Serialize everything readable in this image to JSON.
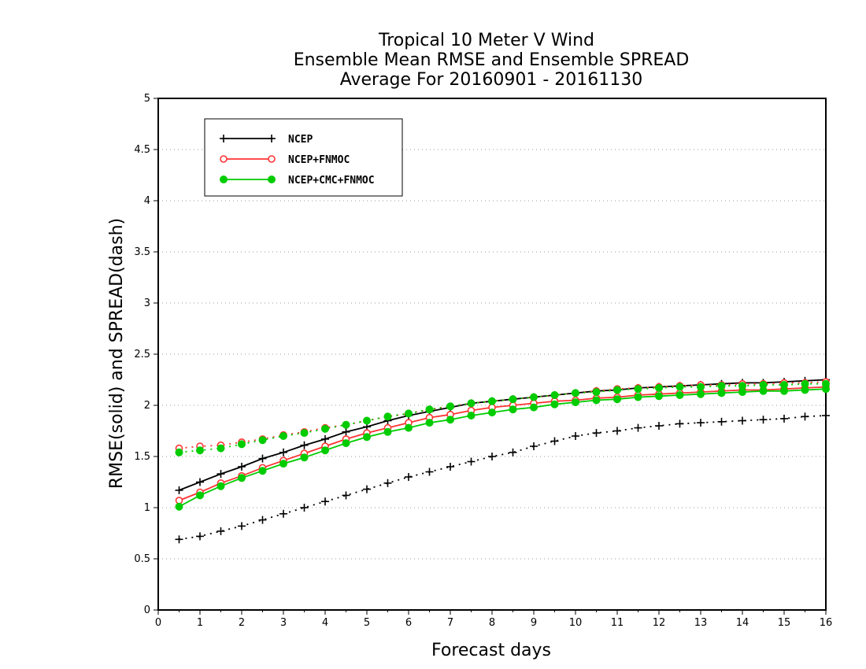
{
  "chart_data": {
    "type": "line",
    "title_lines": [
      "Tropical 10 Meter V Wind",
      "Ensemble Mean RMSE and Ensemble SPREAD",
      "Average For 20160901 - 20161130"
    ],
    "xlabel": "Forecast days",
    "ylabel": "RMSE(solid) and SPREAD(dash)",
    "xlim": [
      0,
      16
    ],
    "ylim": [
      0,
      5
    ],
    "x_ticks": [
      "0",
      "1",
      "2",
      "3",
      "4",
      "5",
      "6",
      "7",
      "8",
      "9",
      "10",
      "11",
      "12",
      "13",
      "14",
      "15",
      "16"
    ],
    "y_ticks": [
      "0",
      "0.5",
      "1",
      "1.5",
      "2",
      "2.5",
      "3",
      "3.5",
      "4",
      "4.5",
      "5"
    ],
    "grid": "horizontal dotted",
    "legend_position": "top-left",
    "x": [
      0.5,
      1,
      1.5,
      2,
      2.5,
      3,
      3.5,
      4,
      4.5,
      5,
      5.5,
      6,
      6.5,
      7,
      7.5,
      8,
      8.5,
      9,
      9.5,
      10,
      10.5,
      11,
      11.5,
      12,
      12.5,
      13,
      13.5,
      14,
      14.5,
      15,
      15.5,
      16
    ],
    "series": [
      {
        "name": "NCEP",
        "color": "#000000",
        "marker": "plus",
        "rmse": [
          1.17,
          1.25,
          1.33,
          1.4,
          1.48,
          1.54,
          1.61,
          1.67,
          1.74,
          1.79,
          1.85,
          1.9,
          1.94,
          1.98,
          2.02,
          2.04,
          2.06,
          2.08,
          2.1,
          2.12,
          2.14,
          2.15,
          2.17,
          2.18,
          2.19,
          2.2,
          2.21,
          2.22,
          2.22,
          2.23,
          2.24,
          2.25
        ],
        "spread": [
          0.69,
          0.72,
          0.77,
          0.82,
          0.88,
          0.94,
          1.0,
          1.06,
          1.12,
          1.18,
          1.24,
          1.3,
          1.35,
          1.4,
          1.45,
          1.5,
          1.54,
          1.6,
          1.65,
          1.7,
          1.73,
          1.75,
          1.78,
          1.8,
          1.82,
          1.83,
          1.84,
          1.85,
          1.86,
          1.87,
          1.89,
          1.9
        ]
      },
      {
        "name": "NCEP+FNMOC",
        "color": "#ff3333",
        "marker": "open-circle",
        "rmse": [
          1.07,
          1.15,
          1.24,
          1.31,
          1.39,
          1.46,
          1.53,
          1.6,
          1.67,
          1.73,
          1.78,
          1.83,
          1.88,
          1.91,
          1.95,
          1.98,
          2.0,
          2.02,
          2.04,
          2.05,
          2.07,
          2.08,
          2.1,
          2.11,
          2.12,
          2.13,
          2.14,
          2.15,
          2.15,
          2.16,
          2.17,
          2.18
        ],
        "spread": [
          1.58,
          1.6,
          1.61,
          1.64,
          1.67,
          1.71,
          1.74,
          1.78,
          1.81,
          1.85,
          1.89,
          1.92,
          1.96,
          1.99,
          2.02,
          2.04,
          2.06,
          2.08,
          2.1,
          2.12,
          2.14,
          2.16,
          2.17,
          2.18,
          2.19,
          2.2,
          2.2,
          2.21,
          2.21,
          2.22,
          2.22,
          2.23
        ]
      },
      {
        "name": "NCEP+CMC+FNMOC",
        "color": "#00cc00",
        "marker": "filled-circle",
        "rmse": [
          1.01,
          1.12,
          1.21,
          1.29,
          1.36,
          1.43,
          1.49,
          1.56,
          1.63,
          1.69,
          1.74,
          1.78,
          1.83,
          1.86,
          1.9,
          1.93,
          1.96,
          1.98,
          2.01,
          2.03,
          2.05,
          2.06,
          2.08,
          2.09,
          2.1,
          2.11,
          2.12,
          2.13,
          2.14,
          2.14,
          2.15,
          2.16
        ],
        "spread": [
          1.54,
          1.56,
          1.58,
          1.62,
          1.66,
          1.7,
          1.73,
          1.77,
          1.81,
          1.85,
          1.89,
          1.92,
          1.96,
          1.99,
          2.02,
          2.04,
          2.06,
          2.08,
          2.1,
          2.12,
          2.13,
          2.15,
          2.16,
          2.17,
          2.18,
          2.18,
          2.19,
          2.19,
          2.2,
          2.2,
          2.21,
          2.21
        ]
      }
    ]
  }
}
